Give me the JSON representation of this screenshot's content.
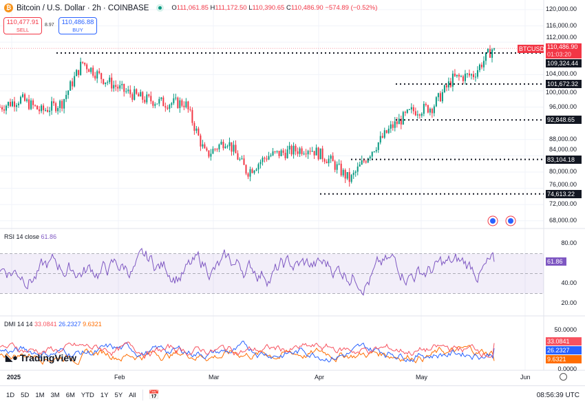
{
  "header": {
    "title": "Bitcoin / U.S. Dollar · 2h · COINBASE",
    "coin_icon": "₿",
    "open_label": "O",
    "open": "111,061.85",
    "high_label": "H",
    "high": "111,172.50",
    "low_label": "L",
    "low": "110,390.65",
    "close_label": "C",
    "close": "110,486.90",
    "change": "−574.89 (−0.52%)"
  },
  "trade": {
    "sell_price": "110,477.91",
    "sell_label": "SELL",
    "spread": "8.97",
    "buy_price": "110,486.88",
    "buy_label": "BUY"
  },
  "price_axis": [
    "120,000.00",
    "116,000.00",
    "112,000.00",
    "104,000.00",
    "100,000.00",
    "96,000.00",
    "88,000.00",
    "84,000.00",
    "80,000.00",
    "76,000.00",
    "72,000.00",
    "68,000.00"
  ],
  "price_axis_values": [
    120000,
    116000,
    112000,
    104000,
    100000,
    96000,
    88000,
    84000,
    80000,
    76000,
    72000,
    68000
  ],
  "symbol_tag": "BTCUSD",
  "last_price": "110,486.90",
  "countdown": "01:03:20",
  "levels": [
    {
      "label": "109,324.44",
      "value": 109324.44
    },
    {
      "label": "101,672.32",
      "value": 101672.32
    },
    {
      "label": "92,848.65",
      "value": 92848.65
    },
    {
      "label": "83,104.18",
      "value": 83104.18
    },
    {
      "label": "74,613.22",
      "value": 74613.22
    }
  ],
  "price_series": [
    96000,
    98000,
    95000,
    97000,
    107000,
    103000,
    100000,
    98000,
    97000,
    97000,
    84000,
    88000,
    80000,
    84000,
    85000,
    86000,
    83000,
    78000,
    85000,
    91000,
    95000,
    96000,
    103000,
    104000,
    111000
  ],
  "rsi": {
    "label": "RSI 14 close",
    "value": "61.86",
    "axis": [
      "80.00",
      "40.00",
      "20.00"
    ],
    "color": "#7e57c2"
  },
  "dmi": {
    "label": "DMI 14 14",
    "plus": "33.0841",
    "minus": "26.2327",
    "adx": "9.6321",
    "axis": [
      "50.0000",
      "0.0000"
    ],
    "plus_color": "#f7525f",
    "minus_color": "#2962ff",
    "adx_color": "#ff6d00"
  },
  "time_axis": [
    "2025",
    "Feb",
    "Mar",
    "Apr",
    "May",
    "Jun"
  ],
  "ranges": [
    "1D",
    "5D",
    "1M",
    "3M",
    "6M",
    "YTD",
    "1Y",
    "5Y",
    "All"
  ],
  "clock": "08:56:39 UTC",
  "logo": "TradingView",
  "colors": {
    "up": "#089981",
    "down": "#f23645"
  }
}
